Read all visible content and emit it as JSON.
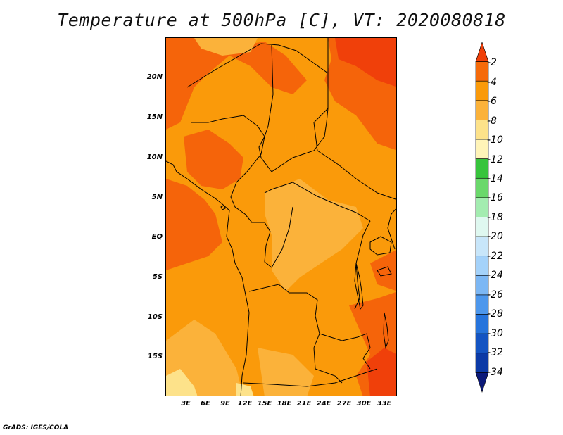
{
  "title": "Temperature at 500hPa [C], VT: 2020080818",
  "credit": "GrADS: IGES/COLA",
  "map": {
    "lat_labels": [
      "20N",
      "15N",
      "10N",
      "5N",
      "EQ",
      "5S",
      "10S",
      "15S"
    ],
    "lon_labels": [
      "3E",
      "6E",
      "9E",
      "12E",
      "15E",
      "18E",
      "21E",
      "24E",
      "27E",
      "30E",
      "33E"
    ],
    "field_colors": {
      "warmest": "#f0400a",
      "warm": "#f5640a",
      "mid": "#fa9a0a",
      "cool": "#fbb23a",
      "coolest": "#fde28a"
    }
  },
  "colorbar": {
    "labels": [
      "-2",
      "-4",
      "-6",
      "-8",
      "-10",
      "-12",
      "-14",
      "-16",
      "-18",
      "-20",
      "-22",
      "-24",
      "-26",
      "-28",
      "-30",
      "-32",
      "-34"
    ],
    "colors": [
      "#f0400a",
      "#f56a0a",
      "#fa9a0a",
      "#fbb23a",
      "#fde28a",
      "#fff4b8",
      "#37c43c",
      "#6ad86b",
      "#a3ecb0",
      "#dff8f0",
      "#c8e6fa",
      "#a4d2fa",
      "#7cb7f4",
      "#4d97ec",
      "#2674dc",
      "#1454c2",
      "#0c3aa6",
      "#0c1a7a"
    ]
  }
}
